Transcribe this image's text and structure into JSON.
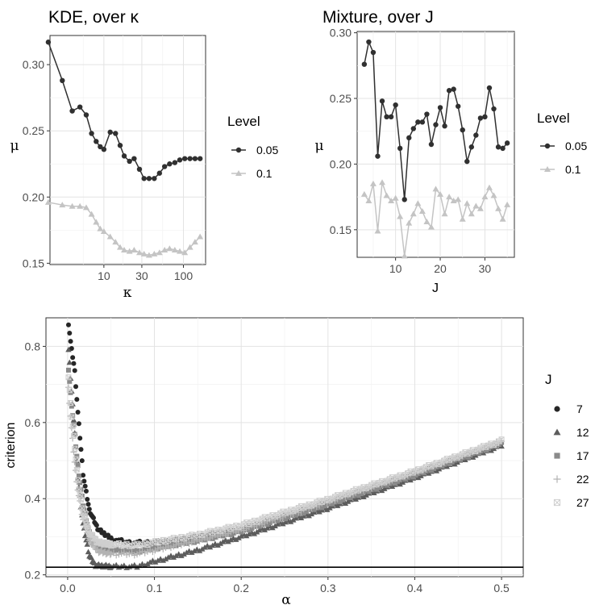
{
  "chart_data": [
    {
      "type": "line",
      "title": "KDE, over  κ",
      "xlabel": "κ",
      "ylabel": "μ",
      "x_scale": "log",
      "xlim": [
        2.1,
        190
      ],
      "ylim": [
        0.149,
        0.322
      ],
      "x_ticks": [
        10,
        30,
        100
      ],
      "x_tick_labels": [
        "10",
        "30",
        "100"
      ],
      "y_ticks": [
        0.15,
        0.2,
        0.25,
        0.3
      ],
      "y_tick_labels": [
        "0.15",
        "0.20",
        "0.25",
        "0.30"
      ],
      "grid": true,
      "legend": {
        "title": "Level",
        "position": "right"
      },
      "x": [
        2,
        3,
        4,
        5,
        6,
        7,
        8,
        9,
        10,
        12,
        14,
        16,
        18,
        21,
        24,
        28,
        32,
        37,
        43,
        50,
        58,
        67,
        78,
        90,
        104,
        121,
        140,
        162
      ],
      "series": [
        {
          "name": "0.05",
          "color": "#303030",
          "marker": "circle",
          "values": [
            0.317,
            0.288,
            0.265,
            0.268,
            0.262,
            0.248,
            0.242,
            0.238,
            0.236,
            0.249,
            0.248,
            0.239,
            0.231,
            0.227,
            0.229,
            0.221,
            0.214,
            0.214,
            0.214,
            0.218,
            0.223,
            0.225,
            0.226,
            0.228,
            0.229,
            0.229,
            0.229,
            0.229
          ]
        },
        {
          "name": "0.1",
          "color": "#c4c4c4",
          "marker": "triangle",
          "values": [
            0.196,
            0.194,
            0.193,
            0.193,
            0.192,
            0.187,
            0.181,
            0.176,
            0.174,
            0.17,
            0.166,
            0.162,
            0.16,
            0.159,
            0.16,
            0.158,
            0.157,
            0.156,
            0.157,
            0.158,
            0.16,
            0.161,
            0.16,
            0.159,
            0.158,
            0.162,
            0.166,
            0.17
          ]
        }
      ]
    },
    {
      "type": "line",
      "title": "Mixture, over J",
      "xlabel": "J",
      "ylabel": "μ",
      "xlim": [
        1.4,
        36.6
      ],
      "ylim": [
        0.129,
        0.301
      ],
      "x_ticks": [
        10,
        20,
        30
      ],
      "x_tick_labels": [
        "10",
        "20",
        "30"
      ],
      "y_ticks": [
        0.15,
        0.2,
        0.25,
        0.3
      ],
      "y_tick_labels": [
        "0.15",
        "0.20",
        "0.25",
        "0.30"
      ],
      "grid": true,
      "legend": {
        "title": "Level",
        "position": "right"
      },
      "x": [
        3,
        4,
        5,
        6,
        7,
        8,
        9,
        10,
        11,
        12,
        13,
        14,
        15,
        16,
        17,
        18,
        19,
        20,
        21,
        22,
        23,
        24,
        25,
        26,
        27,
        28,
        29,
        30,
        31,
        32,
        33,
        34,
        35
      ],
      "series": [
        {
          "name": "0.05",
          "color": "#303030",
          "marker": "circle",
          "values": [
            0.276,
            0.293,
            0.285,
            0.206,
            0.248,
            0.236,
            0.236,
            0.245,
            0.212,
            0.173,
            0.22,
            0.227,
            0.232,
            0.232,
            0.238,
            0.215,
            0.23,
            0.243,
            0.229,
            0.256,
            0.257,
            0.244,
            0.226,
            0.202,
            0.213,
            0.222,
            0.235,
            0.236,
            0.258,
            0.242,
            0.213,
            0.212,
            0.216
          ]
        },
        {
          "name": "0.1",
          "color": "#c4c4c4",
          "marker": "triangle",
          "values": [
            0.177,
            0.172,
            0.185,
            0.149,
            0.186,
            0.176,
            0.172,
            0.174,
            0.16,
            0.13,
            0.155,
            0.162,
            0.17,
            0.164,
            0.156,
            0.152,
            0.181,
            0.177,
            0.162,
            0.175,
            0.172,
            0.173,
            0.158,
            0.17,
            0.162,
            0.168,
            0.166,
            0.175,
            0.182,
            0.176,
            0.166,
            0.158,
            0.169
          ]
        }
      ]
    },
    {
      "type": "scatter",
      "xlabel": "α",
      "ylabel": "criterion",
      "xlim": [
        -0.025,
        0.525
      ],
      "ylim": [
        0.195,
        0.875
      ],
      "x_ticks": [
        0.0,
        0.1,
        0.2,
        0.3,
        0.4,
        0.5
      ],
      "x_tick_labels": [
        "0.0",
        "0.1",
        "0.2",
        "0.3",
        "0.4",
        "0.5"
      ],
      "y_ticks": [
        0.2,
        0.4,
        0.6,
        0.8
      ],
      "y_tick_labels": [
        "0.2",
        "0.4",
        "0.6",
        "0.8"
      ],
      "grid": true,
      "hline": 0.22,
      "legend": {
        "title": "J",
        "position": "right"
      },
      "series": [
        {
          "name": "7",
          "color": "#262626",
          "marker": "circle",
          "curve": [
            [
              0.001,
              0.86
            ],
            [
              0.004,
              0.8
            ],
            [
              0.008,
              0.74
            ],
            [
              0.012,
              0.62
            ],
            [
              0.018,
              0.46
            ],
            [
              0.025,
              0.37
            ],
            [
              0.035,
              0.32
            ],
            [
              0.05,
              0.295
            ],
            [
              0.07,
              0.285
            ],
            [
              0.1,
              0.285
            ],
            [
              0.15,
              0.3
            ],
            [
              0.2,
              0.32
            ],
            [
              0.3,
              0.39
            ],
            [
              0.4,
              0.465
            ],
            [
              0.5,
              0.545
            ]
          ]
        },
        {
          "name": "12",
          "color": "#5c5c5c",
          "marker": "triangle",
          "curve": [
            [
              0.001,
              0.79
            ],
            [
              0.004,
              0.7
            ],
            [
              0.008,
              0.58
            ],
            [
              0.012,
              0.45
            ],
            [
              0.018,
              0.33
            ],
            [
              0.025,
              0.25
            ],
            [
              0.032,
              0.225
            ],
            [
              0.05,
              0.222
            ],
            [
              0.08,
              0.222
            ],
            [
              0.1,
              0.235
            ],
            [
              0.15,
              0.265
            ],
            [
              0.2,
              0.3
            ],
            [
              0.3,
              0.375
            ],
            [
              0.4,
              0.455
            ],
            [
              0.5,
              0.54
            ]
          ]
        },
        {
          "name": "17",
          "color": "#8a8a8a",
          "marker": "square",
          "curve": [
            [
              0.001,
              0.74
            ],
            [
              0.004,
              0.66
            ],
            [
              0.008,
              0.57
            ],
            [
              0.012,
              0.48
            ],
            [
              0.018,
              0.38
            ],
            [
              0.025,
              0.31
            ],
            [
              0.035,
              0.275
            ],
            [
              0.05,
              0.265
            ],
            [
              0.08,
              0.262
            ],
            [
              0.1,
              0.27
            ],
            [
              0.15,
              0.29
            ],
            [
              0.2,
              0.315
            ],
            [
              0.3,
              0.385
            ],
            [
              0.4,
              0.462
            ],
            [
              0.5,
              0.545
            ]
          ]
        },
        {
          "name": "22",
          "color": "#b3b3b3",
          "marker": "plus",
          "curve": [
            [
              0.001,
              0.69
            ],
            [
              0.004,
              0.6
            ],
            [
              0.008,
              0.5
            ],
            [
              0.012,
              0.42
            ],
            [
              0.018,
              0.34
            ],
            [
              0.025,
              0.29
            ],
            [
              0.035,
              0.262
            ],
            [
              0.05,
              0.255
            ],
            [
              0.08,
              0.255
            ],
            [
              0.1,
              0.265
            ],
            [
              0.15,
              0.29
            ],
            [
              0.2,
              0.318
            ],
            [
              0.3,
              0.392
            ],
            [
              0.4,
              0.47
            ],
            [
              0.5,
              0.552
            ]
          ]
        },
        {
          "name": "27",
          "color": "#cfcfcf",
          "marker": "boxx",
          "curve": [
            [
              0.001,
              0.72
            ],
            [
              0.004,
              0.63
            ],
            [
              0.008,
              0.54
            ],
            [
              0.012,
              0.44
            ],
            [
              0.018,
              0.36
            ],
            [
              0.025,
              0.31
            ],
            [
              0.035,
              0.285
            ],
            [
              0.05,
              0.28
            ],
            [
              0.08,
              0.278
            ],
            [
              0.1,
              0.285
            ],
            [
              0.15,
              0.305
            ],
            [
              0.2,
              0.33
            ],
            [
              0.3,
              0.398
            ],
            [
              0.4,
              0.472
            ],
            [
              0.5,
              0.552
            ]
          ]
        }
      ]
    }
  ]
}
